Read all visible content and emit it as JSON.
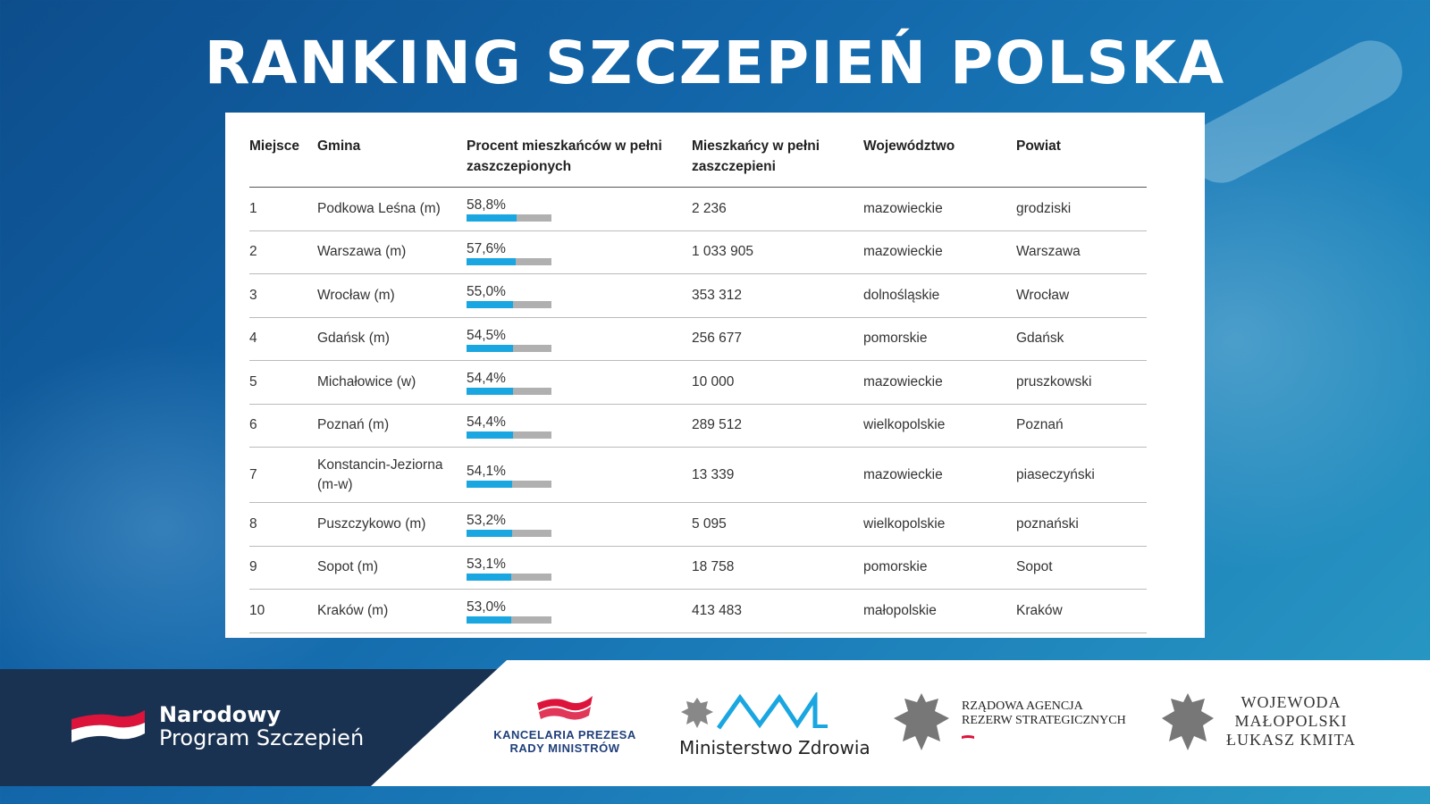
{
  "title": "RANKING SZCZEPIEŃ POLSKA",
  "table": {
    "headers": {
      "miejsce": "Miejsce",
      "gmina": "Gmina",
      "procent": "Procent mieszkańców w pełni zaszczepionych",
      "mieszkancy": "Mieszkańcy w pełni zaszczepieni",
      "wojewodztwo": "Województwo",
      "powiat": "Powiat"
    },
    "rows": [
      {
        "miejsce": "1",
        "gmina": "Podkowa Leśna (m)",
        "procent": "58,8%",
        "procent_value": 58.8,
        "mieszkancy": "2 236",
        "wojewodztwo": "mazowieckie",
        "powiat": "grodziski"
      },
      {
        "miejsce": "2",
        "gmina": "Warszawa (m)",
        "procent": "57,6%",
        "procent_value": 57.6,
        "mieszkancy": "1 033 905",
        "wojewodztwo": "mazowieckie",
        "powiat": "Warszawa"
      },
      {
        "miejsce": "3",
        "gmina": "Wrocław (m)",
        "procent": "55,0%",
        "procent_value": 55.0,
        "mieszkancy": "353 312",
        "wojewodztwo": "dolnośląskie",
        "powiat": "Wrocław"
      },
      {
        "miejsce": "4",
        "gmina": "Gdańsk (m)",
        "procent": "54,5%",
        "procent_value": 54.5,
        "mieszkancy": "256 677",
        "wojewodztwo": "pomorskie",
        "powiat": "Gdańsk"
      },
      {
        "miejsce": "5",
        "gmina": "Michałowice (w)",
        "procent": "54,4%",
        "procent_value": 54.4,
        "mieszkancy": "10 000",
        "wojewodztwo": "mazowieckie",
        "powiat": "pruszkowski"
      },
      {
        "miejsce": "6",
        "gmina": "Poznań (m)",
        "procent": "54,4%",
        "procent_value": 54.4,
        "mieszkancy": "289 512",
        "wojewodztwo": "wielkopolskie",
        "powiat": "Poznań"
      },
      {
        "miejsce": "7",
        "gmina": "Konstancin-Jeziorna (m-w)",
        "procent": "54,1%",
        "procent_value": 54.1,
        "mieszkancy": "13 339",
        "wojewodztwo": "mazowieckie",
        "powiat": "piaseczyński"
      },
      {
        "miejsce": "8",
        "gmina": "Puszczykowo (m)",
        "procent": "53,2%",
        "procent_value": 53.2,
        "mieszkancy": "5 095",
        "wojewodztwo": "wielkopolskie",
        "powiat": "poznański"
      },
      {
        "miejsce": "9",
        "gmina": "Sopot (m)",
        "procent": "53,1%",
        "procent_value": 53.1,
        "mieszkancy": "18 758",
        "wojewodztwo": "pomorskie",
        "powiat": "Sopot"
      },
      {
        "miejsce": "10",
        "gmina": "Kraków (m)",
        "procent": "53,0%",
        "procent_value": 53.0,
        "mieszkancy": "413 483",
        "wojewodztwo": "małopolskie",
        "powiat": "Kraków"
      }
    ]
  },
  "footer": {
    "nps_line1": "Narodowy",
    "nps_line2": "Program Szczepień",
    "kprm_line1": "KANCELARIA PREZESA",
    "kprm_line2": "RADY MINISTRÓW",
    "mz": "Ministerstwo Zdrowia",
    "rars_line1": "RZĄDOWA AGENCJA",
    "rars_line2": "REZERW STRATEGICZNYCH",
    "woj_line1": "WOJEWODA",
    "woj_line2": "MAŁOPOLSKI",
    "woj_line3": "ŁUKASZ KMITA"
  },
  "colors": {
    "bar_fill": "#1aa6e0",
    "bar_track": "#b0b0b0",
    "footer_dark": "#1a3251",
    "poland_red": "#dc143c"
  }
}
